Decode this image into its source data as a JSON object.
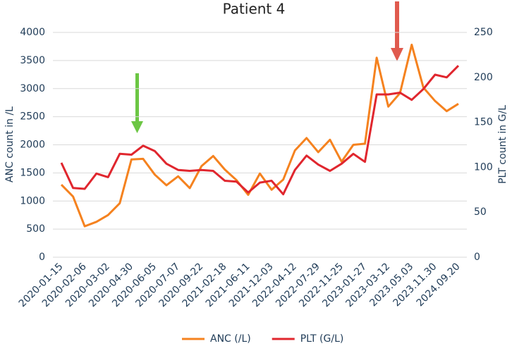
{
  "chart_data": {
    "type": "line",
    "title": "Patient 4",
    "y_label": "ANC count in /L",
    "y2_label": "PLT count in G/L",
    "categories": [
      "2020-01-15",
      null,
      "2020-02-06",
      null,
      "2020-03-02",
      null,
      "2020-04-30",
      null,
      "2020-06-05",
      null,
      "2020-07-07",
      null,
      "2020-09-22",
      null,
      "2021-02-18",
      null,
      "2021-06-11",
      null,
      "2021-12-03",
      null,
      "2022-04-12",
      null,
      "2022-07-29",
      null,
      "2022-11-25",
      null,
      "2023-01-27",
      null,
      "2023-03-12",
      null,
      "2023.05.03",
      null,
      "2023.11.30",
      null,
      "2024.09.20"
    ],
    "series": [
      {
        "name": "ANC (/L)",
        "color": "#f5821f",
        "axis": "y",
        "values": [
          1290,
          1080,
          550,
          630,
          750,
          960,
          1740,
          1750,
          1470,
          1280,
          1440,
          1230,
          1620,
          1800,
          1560,
          1370,
          1110,
          1490,
          1200,
          1380,
          1900,
          2120,
          1870,
          2090,
          1700,
          2000,
          2020,
          3550,
          2680,
          2920,
          3780,
          3020,
          2780,
          2600,
          2730
        ]
      },
      {
        "name": "PLT (G/L)",
        "color": "#e0262e",
        "axis": "y2",
        "values": [
          105,
          77,
          76,
          93,
          89,
          115,
          114,
          124,
          118,
          104,
          97,
          96,
          97,
          96,
          85,
          84,
          72,
          83,
          85,
          70,
          97,
          113,
          103,
          96,
          104,
          115,
          106,
          181,
          181,
          183,
          175,
          187,
          203,
          200,
          213
        ]
      }
    ],
    "ylim": [
      0,
      4000
    ],
    "yticks": [
      0,
      500,
      1000,
      1500,
      2000,
      2500,
      3000,
      3500,
      4000
    ],
    "y2lim": [
      0,
      250
    ],
    "y2ticks": [
      0,
      50,
      100,
      150,
      200,
      250
    ],
    "grid": true,
    "legend": "bottom"
  }
}
